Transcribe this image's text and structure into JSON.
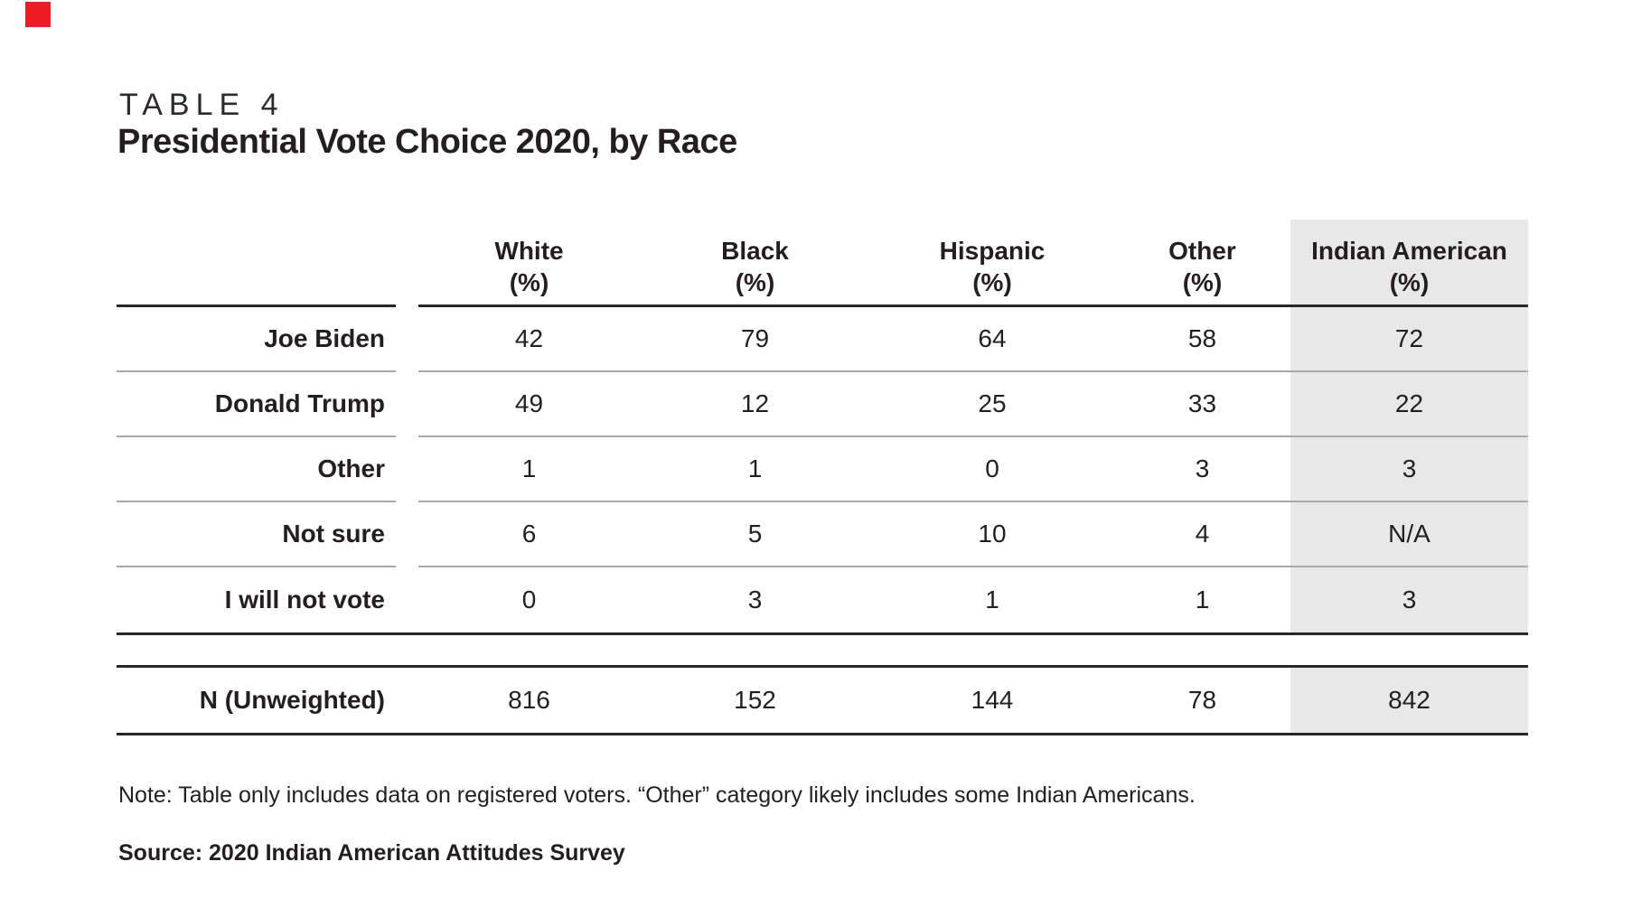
{
  "header": {
    "table_label": "TABLE 4",
    "title": "Presidential Vote Choice 2020, by Race"
  },
  "table": {
    "columns": [
      {
        "name": "White",
        "unit": "(%)",
        "highlighted": false
      },
      {
        "name": "Black",
        "unit": "(%)",
        "highlighted": false
      },
      {
        "name": "Hispanic",
        "unit": "(%)",
        "highlighted": false
      },
      {
        "name": "Other",
        "unit": "(%)",
        "highlighted": false
      },
      {
        "name": "Indian American",
        "unit": "(%)",
        "highlighted": true
      }
    ],
    "rows": [
      {
        "label": "Joe Biden",
        "values": [
          "42",
          "79",
          "64",
          "58",
          "72"
        ]
      },
      {
        "label": "Donald Trump",
        "values": [
          "49",
          "12",
          "25",
          "33",
          "22"
        ]
      },
      {
        "label": "Other",
        "values": [
          "1",
          "1",
          "0",
          "3",
          "3"
        ]
      },
      {
        "label": "Not sure",
        "values": [
          "6",
          "5",
          "10",
          "4",
          "N/A"
        ]
      },
      {
        "label": "I will not vote",
        "values": [
          "0",
          "3",
          "1",
          "1",
          "3"
        ]
      }
    ],
    "summary_row": {
      "label": "N (Unweighted)",
      "values": [
        "816",
        "152",
        "144",
        "78",
        "842"
      ]
    }
  },
  "footnotes": {
    "note": "Note: Table only includes data on registered voters. “Other” category likely includes some Indian Americans.",
    "source": "Source: 2020 Indian American Attitudes Survey"
  },
  "colors": {
    "highlight_bg": "#e8e8e8",
    "text": "#231f20",
    "thick_line": "#2a2627",
    "thin_line": "#a9a9a9",
    "marker_red": "#ed1c24",
    "background": "#ffffff"
  },
  "chart_data": {
    "type": "table",
    "table_label": "TABLE 4",
    "title": "Presidential Vote Choice 2020, by Race",
    "columns": [
      "White (%)",
      "Black (%)",
      "Hispanic (%)",
      "Other (%)",
      "Indian American (%)"
    ],
    "row_labels": [
      "Joe Biden",
      "Donald Trump",
      "Other",
      "Not sure",
      "I will not vote",
      "N (Unweighted)"
    ],
    "values": [
      [
        42,
        79,
        64,
        58,
        72
      ],
      [
        49,
        12,
        25,
        33,
        22
      ],
      [
        1,
        1,
        0,
        3,
        3
      ],
      [
        6,
        5,
        10,
        4,
        "N/A"
      ],
      [
        0,
        3,
        1,
        1,
        3
      ],
      [
        816,
        152,
        144,
        78,
        842
      ]
    ],
    "highlighted_column": "Indian American (%)",
    "note": "Note: Table only includes data on registered voters. “Other” category likely includes some Indian Americans.",
    "source": "Source: 2020 Indian American Attitudes Survey"
  }
}
